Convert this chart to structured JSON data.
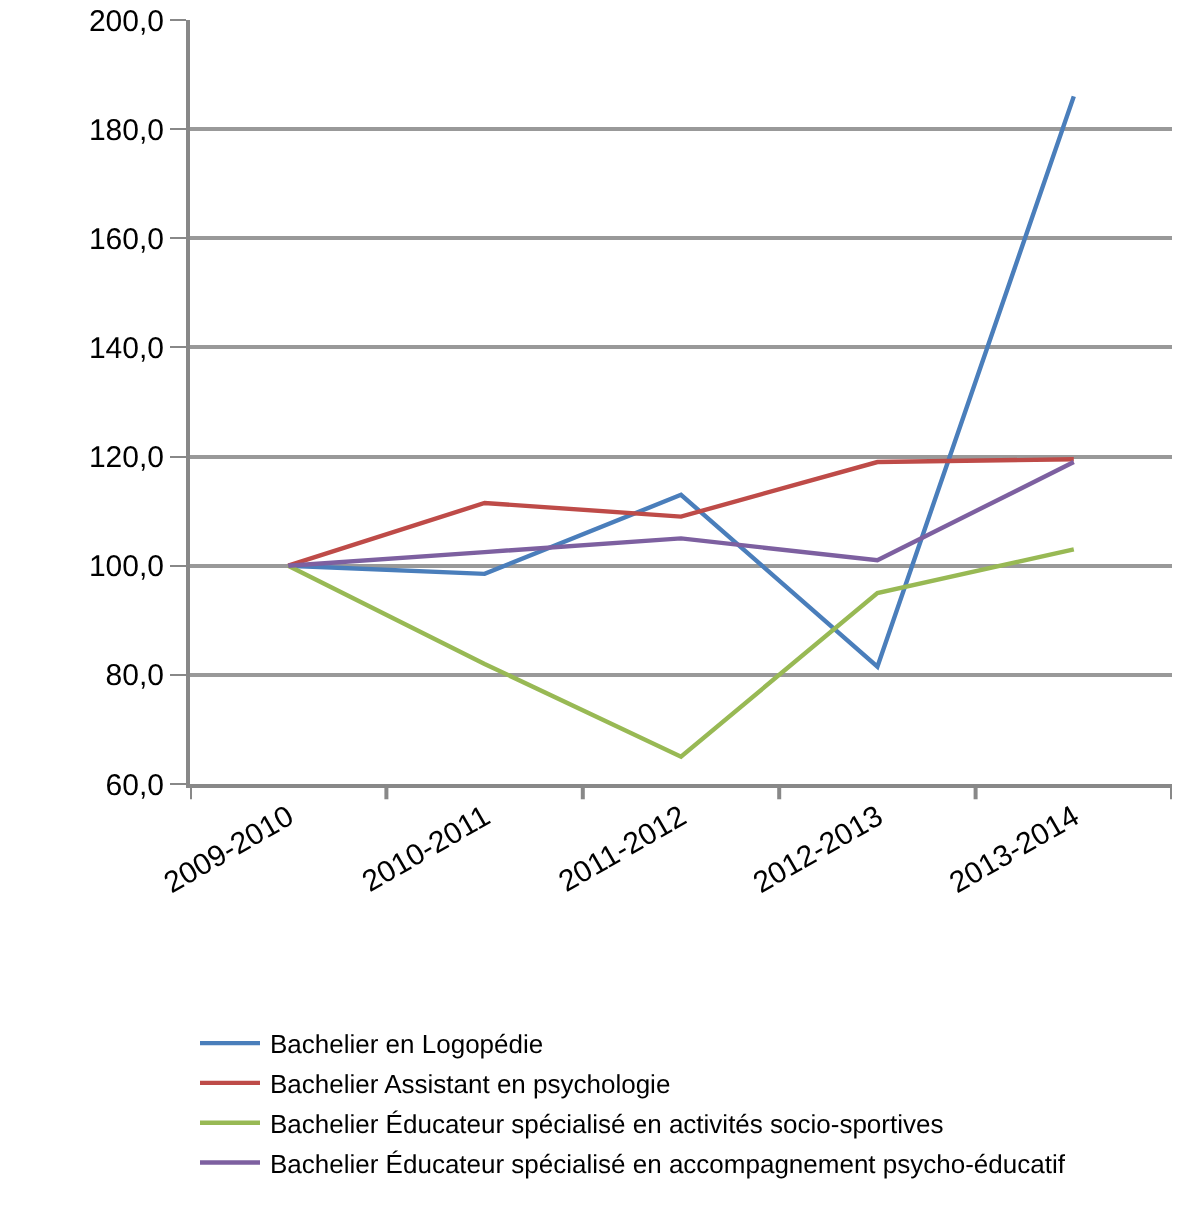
{
  "chart_data": {
    "type": "line",
    "categories": [
      "2009-2010",
      "2010-2011",
      "2011-2012",
      "2012-2013",
      "2013-2014"
    ],
    "series": [
      {
        "name": "Bachelier en Logopédie",
        "color": "#4a7ebb",
        "values": [
          100,
          98.5,
          113,
          81.5,
          186
        ]
      },
      {
        "name": "Bachelier Assistant en psychologie",
        "color": "#be4b48",
        "values": [
          100,
          111.5,
          109,
          119,
          119.5
        ]
      },
      {
        "name": "Bachelier Éducateur spécialisé en activités socio-sportives",
        "color": "#98b954",
        "values": [
          100,
          82,
          65,
          95,
          103
        ]
      },
      {
        "name": "Bachelier Éducateur spécialisé en accompagnement psycho-éducatif",
        "color": "#7d60a0",
        "values": [
          100,
          102.5,
          105,
          101,
          119
        ]
      }
    ],
    "ylim": [
      60,
      200
    ],
    "yticks": [
      {
        "value": 60,
        "label": "60,0"
      },
      {
        "value": 80,
        "label": "80,0"
      },
      {
        "value": 100,
        "label": "100,0"
      },
      {
        "value": 120,
        "label": "120,0"
      },
      {
        "value": 140,
        "label": "140,0"
      },
      {
        "value": 160,
        "label": "160,0"
      },
      {
        "value": 180,
        "label": "180,0"
      },
      {
        "value": 200,
        "label": "200,0"
      }
    ],
    "grid": "y",
    "legend": "bottom",
    "marker": "none",
    "line_style": "solid"
  }
}
